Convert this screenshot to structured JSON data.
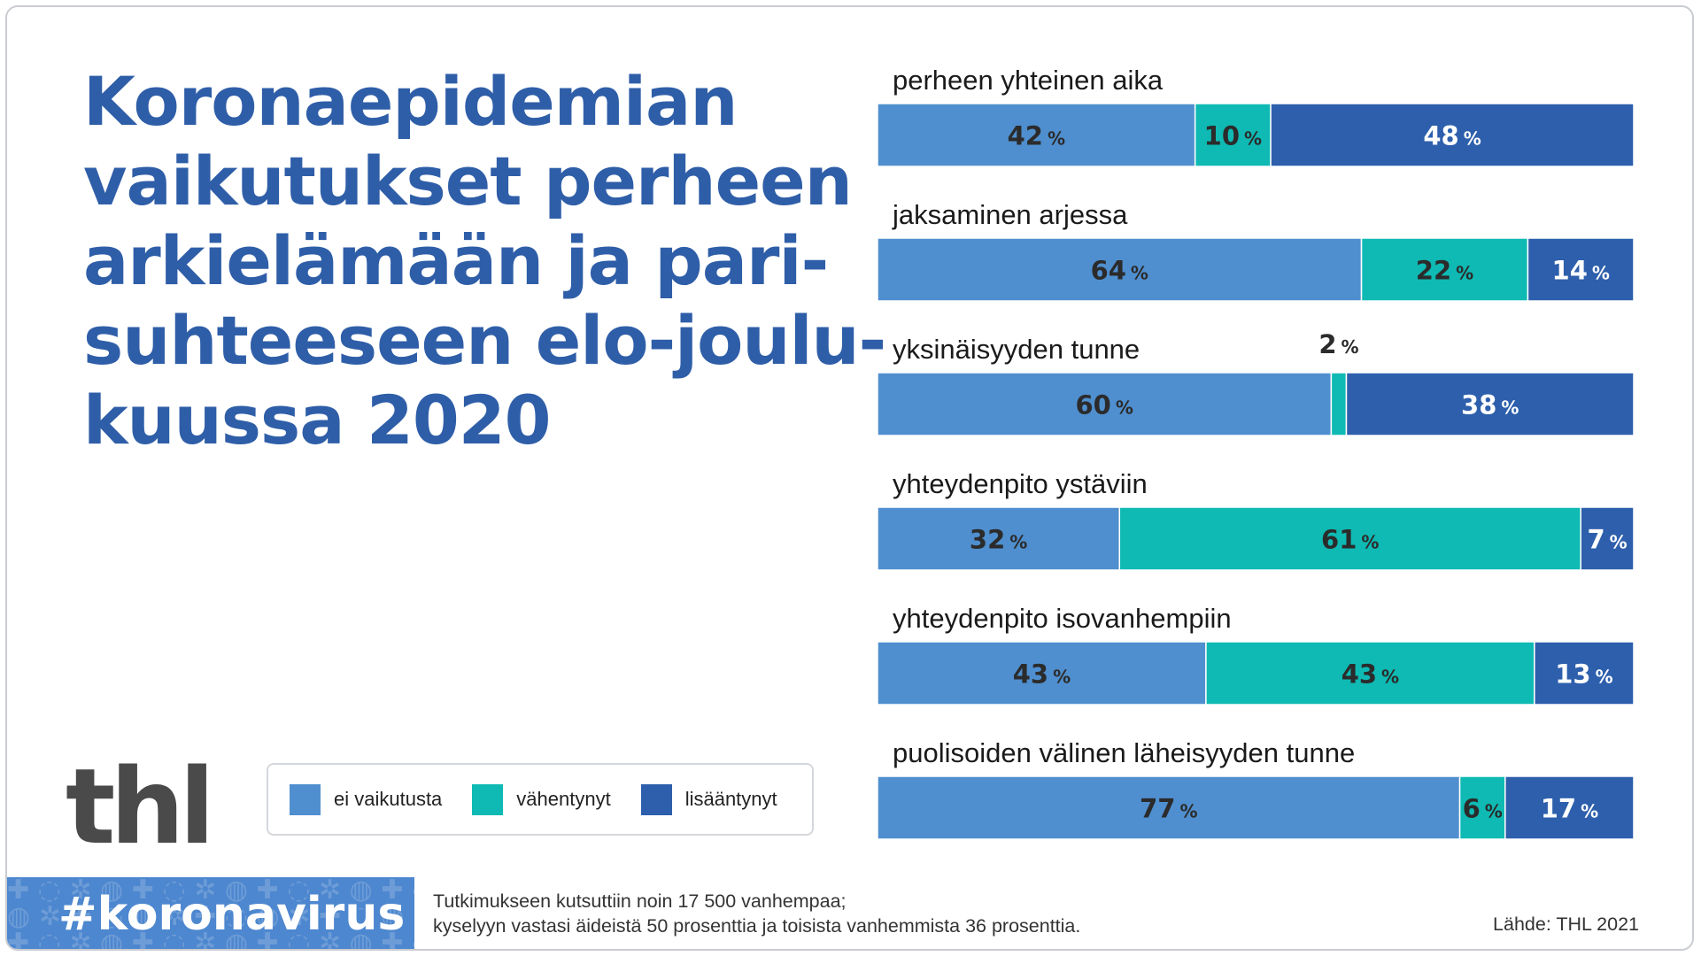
{
  "title_lines": [
    "Koronaepidemian",
    "vaikutukset perheen",
    "arkielämään ja pari-",
    "suhteeseen elo-joulu-",
    "kuussa 2020"
  ],
  "logo_text": "thl",
  "hashtag": "#koronavirus",
  "note_lines": [
    "Tutkimukseen kutsuttiin noin 17 500  vanhempaa;",
    "kyselyyn vastasi äideistä 50 prosenttia ja toisista vanhemmista 36 prosenttia."
  ],
  "source": "Lähde: THL 2021",
  "colors": {
    "title": "#2f5ea8",
    "ei_vaikutusta": "#4f8fcf",
    "vahentynyt": "#0ebab3",
    "lisaantynyt": "#2d5fac",
    "dark_label": "#2b2b2b",
    "light_label": "#ffffff"
  },
  "legend": [
    {
      "label": "ei vaikutusta",
      "color": "#4f8fcf"
    },
    {
      "label": "vähentynyt",
      "color": "#0ebab3"
    },
    {
      "label": "lisääntynyt",
      "color": "#2d5fac"
    }
  ],
  "chart_data": {
    "type": "bar",
    "orientation": "horizontal",
    "stacked": true,
    "unit": "%",
    "categories": [
      "perheen yhteinen aika",
      "jaksaminen arjessa",
      "yksinäisyyden tunne",
      "yhteydenpito ystäviin",
      "yhteydenpito isovanhempiin",
      "puolisoiden välinen läheisyyden tunne"
    ],
    "series": [
      {
        "name": "ei vaikutusta",
        "values": [
          42,
          64,
          60,
          32,
          43,
          77
        ]
      },
      {
        "name": "vähentynyt",
        "values": [
          10,
          22,
          2,
          61,
          43,
          6
        ]
      },
      {
        "name": "lisääntynyt",
        "values": [
          48,
          14,
          38,
          7,
          13,
          17
        ]
      }
    ],
    "legend_position": "bottom-left",
    "grid": false
  }
}
